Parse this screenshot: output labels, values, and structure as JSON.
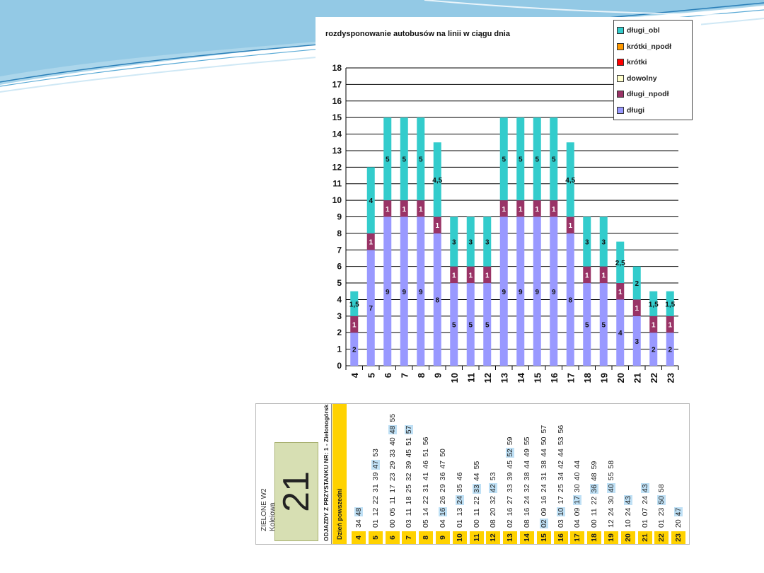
{
  "chart_data": {
    "type": "bar",
    "stacked": true,
    "title": "rozdysponowanie  autobusów na linii w ciągu dnia",
    "categories": [
      "4",
      "5",
      "6",
      "7",
      "8",
      "9",
      "10",
      "11",
      "12",
      "13",
      "14",
      "15",
      "16",
      "17",
      "18",
      "19",
      "20",
      "21",
      "22",
      "23"
    ],
    "ylim": [
      0,
      18
    ],
    "yticks": [
      0,
      1,
      2,
      3,
      4,
      5,
      6,
      7,
      8,
      9,
      10,
      11,
      12,
      13,
      14,
      15,
      16,
      17,
      18
    ],
    "series": [
      {
        "name": "długi",
        "color": "#9999ff",
        "values": [
          2,
          7,
          9,
          9,
          9,
          8,
          5,
          5,
          5,
          9,
          9,
          9,
          9,
          8,
          5,
          5,
          4,
          3,
          2,
          2
        ]
      },
      {
        "name": "długi_npodł",
        "color": "#993366",
        "values": [
          1,
          1,
          1,
          1,
          1,
          1,
          1,
          1,
          1,
          1,
          1,
          1,
          1,
          1,
          1,
          1,
          1,
          1,
          1,
          1
        ]
      },
      {
        "name": "dowolny",
        "color": "#ffffcc",
        "values": [
          0,
          0,
          0,
          0,
          0,
          0,
          0,
          0,
          0,
          0,
          0,
          0,
          0,
          0,
          0,
          0,
          0,
          0,
          0,
          0
        ]
      },
      {
        "name": "krótki",
        "color": "#ff0000",
        "values": [
          0,
          0,
          0,
          0,
          0,
          0,
          0,
          0,
          0,
          0,
          0,
          0,
          0,
          0,
          0,
          0,
          0,
          0,
          0,
          0
        ]
      },
      {
        "name": "krótki_npodł",
        "color": "#ff9900",
        "values": [
          0,
          0,
          0,
          0,
          0,
          0,
          0,
          0,
          0,
          0,
          0,
          0,
          0,
          0,
          0,
          0,
          0,
          0,
          0,
          0
        ]
      },
      {
        "name": "długi_obl",
        "color": "#33cccc",
        "values": [
          1.5,
          4,
          5,
          5,
          5,
          4.5,
          3,
          3,
          3,
          5,
          5,
          5,
          5,
          4.5,
          3,
          3,
          2.5,
          2,
          1.5,
          1.5
        ]
      }
    ],
    "data_labels": {
      "długi": [
        "2",
        "7",
        "9",
        "9",
        "9",
        "8",
        "5",
        "5",
        "5",
        "9",
        "9",
        "9",
        "9",
        "8",
        "5",
        "5",
        "4",
        "3",
        "2",
        "2"
      ],
      "długi_npodł": [
        "1",
        "1",
        "1",
        "1",
        "1",
        "1",
        "1",
        "1",
        "1",
        "1",
        "1",
        "1",
        "1",
        "1",
        "1",
        "1",
        "1",
        "1",
        "1",
        "1"
      ],
      "długi_obl": [
        "1,5",
        "4",
        "5",
        "5",
        "5",
        "4,5",
        "3",
        "3",
        "3",
        "5",
        "5",
        "5",
        "5",
        "4,5",
        "3",
        "3",
        "2,5",
        "2",
        "1,5",
        "1,5"
      ]
    },
    "legend_order": [
      "długi_obl",
      "krótki_npodł",
      "krótki",
      "dowolny",
      "długi_npodł",
      "długi"
    ],
    "legend_position": "top-right",
    "grid": true
  },
  "timetable": {
    "line_number": "21",
    "stop_name_1": "ZIELONE W2",
    "stop_name_2": "Kolejowa",
    "header": "ODJAZDY Z PRZYSTANKU NR: 1 - Zielonogórsk",
    "day_type": "Dzień powszedni",
    "rows": [
      {
        "hour": "4",
        "minutes": [
          {
            "m": "34",
            "hl": false
          },
          {
            "m": "48",
            "hl": true
          }
        ]
      },
      {
        "hour": "5",
        "minutes": [
          {
            "m": "01",
            "hl": false
          },
          {
            "m": "12",
            "hl": false
          },
          {
            "m": "22",
            "hl": false
          },
          {
            "m": "31",
            "hl": false
          },
          {
            "m": "39",
            "hl": false
          },
          {
            "m": "47",
            "hl": true
          },
          {
            "m": "53",
            "hl": false
          }
        ]
      },
      {
        "hour": "6",
        "minutes": [
          {
            "m": "00",
            "hl": false
          },
          {
            "m": "05",
            "hl": false
          },
          {
            "m": "11",
            "hl": false
          },
          {
            "m": "17",
            "hl": false
          },
          {
            "m": "23",
            "hl": false
          },
          {
            "m": "29",
            "hl": false
          },
          {
            "m": "33",
            "hl": false
          },
          {
            "m": "40",
            "hl": false
          },
          {
            "m": "48",
            "hl": true
          },
          {
            "m": "55",
            "hl": false
          }
        ]
      },
      {
        "hour": "7",
        "minutes": [
          {
            "m": "03",
            "hl": false
          },
          {
            "m": "11",
            "hl": false
          },
          {
            "m": "18",
            "hl": false
          },
          {
            "m": "25",
            "hl": false
          },
          {
            "m": "32",
            "hl": false
          },
          {
            "m": "39",
            "hl": false
          },
          {
            "m": "45",
            "hl": false
          },
          {
            "m": "51",
            "hl": false
          },
          {
            "m": "57",
            "hl": true
          }
        ]
      },
      {
        "hour": "8",
        "minutes": [
          {
            "m": "05",
            "hl": false
          },
          {
            "m": "14",
            "hl": false
          },
          {
            "m": "22",
            "hl": false
          },
          {
            "m": "31",
            "hl": false
          },
          {
            "m": "41",
            "hl": false
          },
          {
            "m": "46",
            "hl": false
          },
          {
            "m": "51",
            "hl": false
          },
          {
            "m": "56",
            "hl": false
          }
        ]
      },
      {
        "hour": "9",
        "minutes": [
          {
            "m": "04",
            "hl": false
          },
          {
            "m": "16",
            "hl": true
          },
          {
            "m": "26",
            "hl": false
          },
          {
            "m": "29",
            "hl": false
          },
          {
            "m": "36",
            "hl": false
          },
          {
            "m": "47",
            "hl": false
          },
          {
            "m": "50",
            "hl": false
          }
        ]
      },
      {
        "hour": "10",
        "minutes": [
          {
            "m": "01",
            "hl": false
          },
          {
            "m": "13",
            "hl": false
          },
          {
            "m": "24",
            "hl": true
          },
          {
            "m": "35",
            "hl": false
          },
          {
            "m": "46",
            "hl": false
          }
        ]
      },
      {
        "hour": "11",
        "minutes": [
          {
            "m": "00",
            "hl": false
          },
          {
            "m": "11",
            "hl": false
          },
          {
            "m": "22",
            "hl": false
          },
          {
            "m": "33",
            "hl": true
          },
          {
            "m": "44",
            "hl": false
          },
          {
            "m": "55",
            "hl": false
          }
        ]
      },
      {
        "hour": "12",
        "minutes": [
          {
            "m": "08",
            "hl": false
          },
          {
            "m": "20",
            "hl": false
          },
          {
            "m": "32",
            "hl": false
          },
          {
            "m": "42",
            "hl": true
          },
          {
            "m": "53",
            "hl": false
          }
        ]
      },
      {
        "hour": "13",
        "minutes": [
          {
            "m": "02",
            "hl": false
          },
          {
            "m": "16",
            "hl": false
          },
          {
            "m": "27",
            "hl": false
          },
          {
            "m": "33",
            "hl": false
          },
          {
            "m": "39",
            "hl": false
          },
          {
            "m": "45",
            "hl": false
          },
          {
            "m": "52",
            "hl": true
          },
          {
            "m": "59",
            "hl": false
          }
        ]
      },
      {
        "hour": "14",
        "minutes": [
          {
            "m": "08",
            "hl": false
          },
          {
            "m": "16",
            "hl": false
          },
          {
            "m": "24",
            "hl": false
          },
          {
            "m": "32",
            "hl": false
          },
          {
            "m": "38",
            "hl": false
          },
          {
            "m": "44",
            "hl": false
          },
          {
            "m": "49",
            "hl": false
          },
          {
            "m": "55",
            "hl": false
          }
        ]
      },
      {
        "hour": "15",
        "minutes": [
          {
            "m": "02",
            "hl": true
          },
          {
            "m": "09",
            "hl": false
          },
          {
            "m": "16",
            "hl": false
          },
          {
            "m": "24",
            "hl": false
          },
          {
            "m": "31",
            "hl": false
          },
          {
            "m": "38",
            "hl": false
          },
          {
            "m": "44",
            "hl": false
          },
          {
            "m": "50",
            "hl": false
          },
          {
            "m": "57",
            "hl": false
          }
        ]
      },
      {
        "hour": "16",
        "minutes": [
          {
            "m": "03",
            "hl": false
          },
          {
            "m": "10",
            "hl": true
          },
          {
            "m": "17",
            "hl": false
          },
          {
            "m": "25",
            "hl": false
          },
          {
            "m": "34",
            "hl": false
          },
          {
            "m": "42",
            "hl": false
          },
          {
            "m": "44",
            "hl": false
          },
          {
            "m": "53",
            "hl": false
          },
          {
            "m": "56",
            "hl": false
          }
        ]
      },
      {
        "hour": "17",
        "minutes": [
          {
            "m": "04",
            "hl": false
          },
          {
            "m": "09",
            "hl": false
          },
          {
            "m": "17",
            "hl": true
          },
          {
            "m": "30",
            "hl": false
          },
          {
            "m": "40",
            "hl": false
          },
          {
            "m": "44",
            "hl": false
          }
        ]
      },
      {
        "hour": "18",
        "minutes": [
          {
            "m": "00",
            "hl": false
          },
          {
            "m": "11",
            "hl": false
          },
          {
            "m": "22",
            "hl": false
          },
          {
            "m": "36",
            "hl": true
          },
          {
            "m": "48",
            "hl": false
          },
          {
            "m": "59",
            "hl": false
          }
        ]
      },
      {
        "hour": "19",
        "minutes": [
          {
            "m": "12",
            "hl": false
          },
          {
            "m": "24",
            "hl": false
          },
          {
            "m": "30",
            "hl": false
          },
          {
            "m": "40",
            "hl": true
          },
          {
            "m": "55",
            "hl": false
          },
          {
            "m": "58",
            "hl": false
          }
        ]
      },
      {
        "hour": "20",
        "minutes": [
          {
            "m": "10",
            "hl": false
          },
          {
            "m": "24",
            "hl": false
          },
          {
            "m": "43",
            "hl": true
          }
        ]
      },
      {
        "hour": "21",
        "minutes": [
          {
            "m": "01",
            "hl": false
          },
          {
            "m": "07",
            "hl": false
          },
          {
            "m": "24",
            "hl": false
          },
          {
            "m": "43",
            "hl": true
          }
        ]
      },
      {
        "hour": "22",
        "minutes": [
          {
            "m": "01",
            "hl": false
          },
          {
            "m": "23",
            "hl": false
          },
          {
            "m": "50",
            "hl": true
          },
          {
            "m": "58",
            "hl": false
          }
        ]
      },
      {
        "hour": "23",
        "minutes": [
          {
            "m": "20",
            "hl": false
          },
          {
            "m": "47",
            "hl": true
          }
        ]
      }
    ]
  }
}
